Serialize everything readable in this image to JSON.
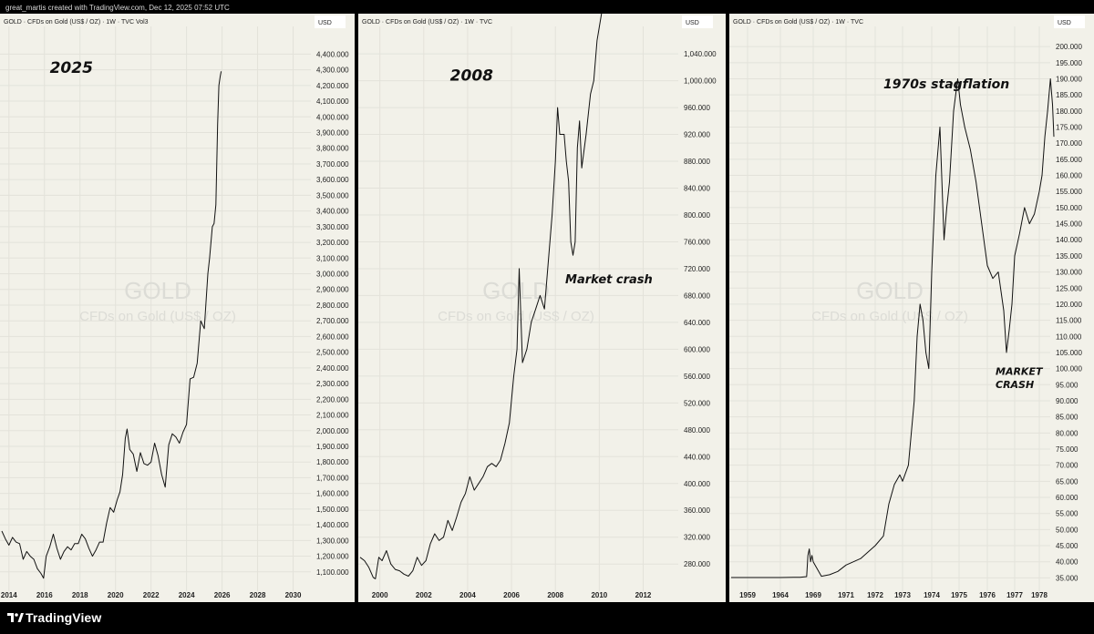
{
  "credit": "great_martis created with TradingView.com, Dec 12, 2025 07:52 UTC",
  "footer": {
    "brand": "TradingView",
    "logo_icon": "tradingview-logo-icon"
  },
  "colors": {
    "background": "#f2f1e9",
    "line": "#111111",
    "grid": "#e3e2da",
    "divider": "#000000"
  },
  "chart_data": [
    {
      "type": "line",
      "header": "GOLD · CFDs on Gold (US$ / OZ) · 1W · TVC  Vol3",
      "currency_label": "USD",
      "watermark": {
        "symbol": "GOLD",
        "description": "CFDs on Gold (US$ / OZ)"
      },
      "annotations": [
        {
          "text": "2025",
          "size": 17,
          "x": 2016.3,
          "y": 4280
        }
      ],
      "xlim": [
        2013.6,
        2031.0
      ],
      "ylim": [
        1000,
        4530
      ],
      "x_ticks": [
        2014,
        2016,
        2018,
        2020,
        2022,
        2024,
        2026,
        2028,
        2030
      ],
      "y_ticks": [
        1100,
        1200,
        1300,
        1400,
        1500,
        1600,
        1700,
        1800,
        1900,
        2000,
        2100,
        2200,
        2300,
        2400,
        2500,
        2600,
        2700,
        2800,
        2900,
        3000,
        3100,
        3200,
        3300,
        3400,
        3500,
        3600,
        3700,
        3800,
        3900,
        4000,
        4100,
        4200,
        4300,
        4400
      ],
      "y_tick_labels": [
        "1,100.000",
        "1,200.000",
        "1,300.000",
        "1,400.000",
        "1,500.000",
        "1,600.000",
        "1,700.000",
        "1,800.000",
        "1,900.000",
        "2,000.000",
        "2,100.000",
        "2,200.000",
        "2,300.000",
        "2,400.000",
        "2,500.000",
        "2,600.000",
        "2,700.000",
        "2,800.000",
        "2,900.000",
        "3,000.000",
        "3,100.000",
        "3,200.000",
        "3,300.000",
        "3,400.000",
        "3,500.000",
        "3,600.000",
        "3,700.000",
        "3,800.000",
        "3,900.000",
        "4,000.000",
        "4,100.000",
        "4,200.000",
        "4,300.000",
        "4,400.000"
      ],
      "series": [
        {
          "x": [
            2013.6,
            2013.8,
            2014.0,
            2014.2,
            2014.4,
            2014.6,
            2014.8,
            2015.0,
            2015.2,
            2015.4,
            2015.6,
            2015.8,
            2015.95,
            2016.1,
            2016.3,
            2016.5,
            2016.7,
            2016.9,
            2017.1,
            2017.3,
            2017.5,
            2017.7,
            2017.9,
            2018.1,
            2018.3,
            2018.5,
            2018.7,
            2018.9,
            2019.1,
            2019.3,
            2019.5,
            2019.7,
            2019.9,
            2020.1,
            2020.25,
            2020.4,
            2020.55,
            2020.65,
            2020.8,
            2021.0,
            2021.2,
            2021.4,
            2021.6,
            2021.8,
            2022.0,
            2022.2,
            2022.4,
            2022.6,
            2022.8,
            2023.0,
            2023.2,
            2023.4,
            2023.6,
            2023.8,
            2024.0,
            2024.2,
            2024.4,
            2024.6,
            2024.8,
            2025.0,
            2025.2,
            2025.3,
            2025.45,
            2025.55,
            2025.65,
            2025.75,
            2025.82,
            2025.9,
            2025.95
          ],
          "y": [
            1360,
            1310,
            1270,
            1320,
            1290,
            1280,
            1180,
            1230,
            1200,
            1180,
            1120,
            1090,
            1060,
            1200,
            1260,
            1340,
            1250,
            1180,
            1230,
            1260,
            1240,
            1280,
            1280,
            1340,
            1310,
            1250,
            1200,
            1240,
            1290,
            1290,
            1410,
            1510,
            1480,
            1560,
            1610,
            1720,
            1950,
            2010,
            1880,
            1850,
            1740,
            1860,
            1790,
            1780,
            1800,
            1920,
            1840,
            1720,
            1640,
            1910,
            1980,
            1960,
            1920,
            1990,
            2040,
            2330,
            2340,
            2430,
            2700,
            2650,
            3000,
            3100,
            3300,
            3320,
            3440,
            3950,
            4200,
            4260,
            4290
          ]
        }
      ]
    },
    {
      "type": "line",
      "header": "GOLD · CFDs on Gold (US$ / OZ) · 1W · TVC",
      "currency_label": "USD",
      "watermark": {
        "symbol": "GOLD",
        "description": "CFDs on Gold (US$ / OZ)"
      },
      "annotations": [
        {
          "text": "2008",
          "size": 17,
          "x": 2003.2,
          "y": 1000
        },
        {
          "text": "Market crash",
          "size": 13,
          "x": 2008.45,
          "y": 698
        }
      ],
      "xlim": [
        1999.1,
        2013.6
      ],
      "ylim": [
        245,
        1070
      ],
      "x_ticks": [
        2000,
        2002,
        2004,
        2006,
        2008,
        2010,
        2012
      ],
      "y_ticks": [
        280,
        320,
        360,
        400,
        440,
        480,
        520,
        560,
        600,
        640,
        680,
        720,
        760,
        800,
        840,
        880,
        920,
        960,
        1000,
        1040
      ],
      "y_tick_labels": [
        "280.000",
        "320.000",
        "360.000",
        "400.000",
        "440.000",
        "480.000",
        "520.000",
        "560.000",
        "600.000",
        "640.000",
        "680.000",
        "720.000",
        "760.000",
        "800.000",
        "840.000",
        "880.000",
        "920.000",
        "960.000",
        "1,000.000",
        "1,040.000"
      ],
      "series": [
        {
          "x": [
            1999.1,
            1999.3,
            1999.5,
            1999.7,
            1999.8,
            1999.95,
            2000.1,
            2000.3,
            2000.5,
            2000.7,
            2000.9,
            2001.1,
            2001.3,
            2001.5,
            2001.7,
            2001.9,
            2002.1,
            2002.3,
            2002.5,
            2002.7,
            2002.9,
            2003.1,
            2003.3,
            2003.5,
            2003.7,
            2003.9,
            2004.1,
            2004.3,
            2004.5,
            2004.7,
            2004.9,
            2005.1,
            2005.3,
            2005.5,
            2005.7,
            2005.9,
            2006.1,
            2006.25,
            2006.35,
            2006.5,
            2006.7,
            2006.9,
            2007.1,
            2007.3,
            2007.5,
            2007.7,
            2007.85,
            2008.0,
            2008.1,
            2008.2,
            2008.4,
            2008.5,
            2008.6,
            2008.7,
            2008.8,
            2008.9,
            2009.0,
            2009.1,
            2009.2,
            2009.4,
            2009.6,
            2009.75,
            2009.9,
            2010.1
          ],
          "y": [
            290,
            285,
            275,
            260,
            258,
            290,
            285,
            300,
            280,
            272,
            270,
            265,
            262,
            270,
            290,
            278,
            285,
            310,
            325,
            315,
            320,
            345,
            330,
            350,
            372,
            385,
            410,
            390,
            400,
            410,
            425,
            430,
            425,
            435,
            460,
            490,
            560,
            600,
            720,
            580,
            600,
            640,
            660,
            680,
            660,
            740,
            800,
            880,
            960,
            920,
            920,
            880,
            850,
            760,
            740,
            760,
            900,
            940,
            870,
            920,
            980,
            1000,
            1060,
            1100
          ]
        }
      ]
    },
    {
      "type": "line",
      "header": "GOLD · CFDs on Gold (US$ / OZ) · 1W · TVC",
      "currency_label": "USD",
      "watermark": {
        "symbol": "GOLD",
        "description": "CFDs on Gold (US$ / OZ)"
      },
      "annotations": [
        {
          "text": "1970s stagflation",
          "size": 14,
          "x": 1972.3,
          "y": 187
        },
        {
          "text": "MARKET",
          "size": 11,
          "x": 1976.3,
          "y": 98
        },
        {
          "text": "CRASH",
          "size": 11,
          "x": 1976.3,
          "y": 94
        }
      ],
      "x_ticks": [
        1959,
        1964,
        1969,
        1971,
        1972,
        1973,
        1974,
        1975,
        1976,
        1977,
        1978
      ],
      "y_ticks": [
        35,
        40,
        45,
        50,
        55,
        60,
        65,
        70,
        75,
        80,
        85,
        90,
        95,
        100,
        105,
        110,
        115,
        120,
        125,
        130,
        135,
        140,
        145,
        150,
        155,
        160,
        165,
        170,
        175,
        180,
        185,
        190,
        195,
        200
      ],
      "y_tick_labels": [
        "35.000",
        "40.000",
        "45.000",
        "50.000",
        "55.000",
        "60.000",
        "65.000",
        "70.000",
        "75.000",
        "80.000",
        "85.000",
        "90.000",
        "95.000",
        "100.000",
        "105.000",
        "110.000",
        "115.000",
        "120.000",
        "125.000",
        "130.000",
        "135.000",
        "140.000",
        "145.000",
        "150.000",
        "155.000",
        "160.000",
        "165.000",
        "170.000",
        "175.000",
        "180.000",
        "185.000",
        "190.000",
        "195.000",
        "200.000"
      ],
      "ylim": [
        32,
        204
      ],
      "series": [
        {
          "x": [
            1958.5,
            1960,
            1962,
            1964,
            1966,
            1967,
            1968,
            1968.2,
            1968.4,
            1968.6,
            1968.8,
            1969,
            1969.5,
            1970,
            1970.5,
            1971,
            1971.5,
            1972,
            1972.3,
            1972.5,
            1972.7,
            1972.9,
            1973.0,
            1973.2,
            1973.4,
            1973.5,
            1973.6,
            1973.7,
            1973.8,
            1973.9,
            1974.0,
            1974.15,
            1974.3,
            1974.45,
            1974.55,
            1974.65,
            1974.8,
            1974.95,
            1975.05,
            1975.2,
            1975.4,
            1975.6,
            1975.8,
            1976.0,
            1976.2,
            1976.4,
            1976.6,
            1976.7,
            1976.8,
            1976.9,
            1977.0,
            1977.2,
            1977.4,
            1977.6,
            1977.8,
            1978.0,
            1978.2,
            1978.4,
            1978.6,
            1978.8,
            1978.95,
            1979.05
          ],
          "y": [
            35.1,
            35.1,
            35.1,
            35.1,
            35.2,
            35.2,
            35.4,
            42,
            44,
            40,
            42,
            40,
            35.5,
            36,
            37,
            39,
            41,
            45,
            48,
            58,
            64,
            67,
            65,
            70,
            90,
            110,
            120,
            115,
            105,
            100,
            130,
            160,
            175,
            140,
            150,
            158,
            180,
            190,
            182,
            175,
            168,
            158,
            145,
            132,
            128,
            130,
            118,
            105,
            112,
            120,
            135,
            142,
            150,
            145,
            148,
            155,
            160,
            172,
            180,
            190,
            182,
            172
          ]
        }
      ]
    }
  ]
}
